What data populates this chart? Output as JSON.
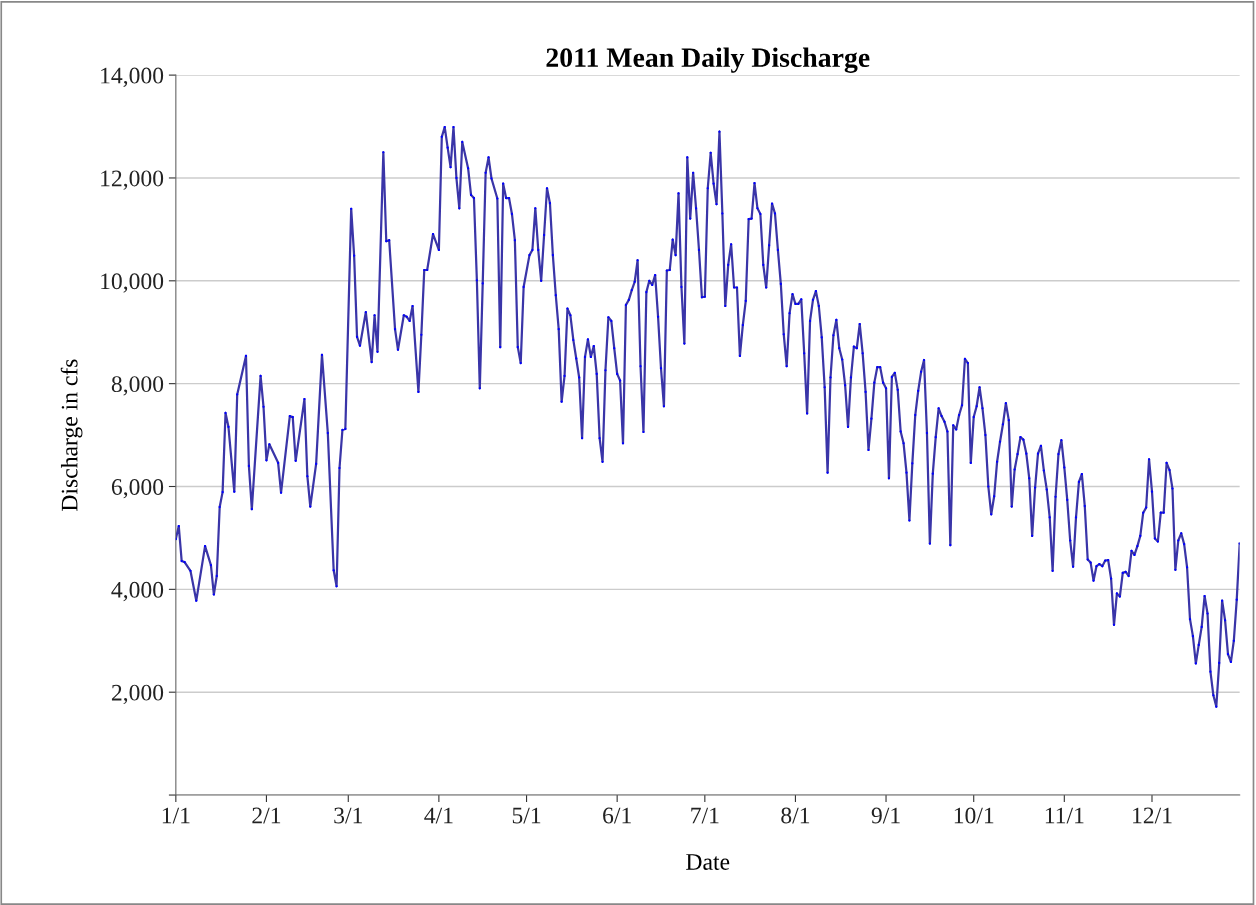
{
  "chart_data": {
    "type": "line",
    "title": "2011 Mean Daily Discharge",
    "xlabel": "Date",
    "ylabel": "Discharge in cfs",
    "xlim": [
      "2011-01-01",
      "2011-12-31"
    ],
    "xticks": [
      {
        "value": "2011-01-01",
        "label": "1/1"
      },
      {
        "value": "2011-02-01",
        "label": "2/1"
      },
      {
        "value": "2011-03-01",
        "label": "3/1"
      },
      {
        "value": "2011-04-01",
        "label": "4/1"
      },
      {
        "value": "2011-05-01",
        "label": "5/1"
      },
      {
        "value": "2011-06-01",
        "label": "6/1"
      },
      {
        "value": "2011-07-01",
        "label": "7/1"
      },
      {
        "value": "2011-08-01",
        "label": "8/1"
      },
      {
        "value": "2011-09-01",
        "label": "9/1"
      },
      {
        "value": "2011-10-01",
        "label": "10/1"
      },
      {
        "value": "2011-11-01",
        "label": "11/1"
      },
      {
        "value": "2011-12-01",
        "label": "12/1"
      }
    ],
    "ylim": [
      0,
      14000
    ],
    "yticks": [
      {
        "value": 0,
        "label": null
      },
      {
        "value": 2000,
        "label": "2,000"
      },
      {
        "value": 4000,
        "label": "4,000"
      },
      {
        "value": 6000,
        "label": "6,000"
      },
      {
        "value": 8000,
        "label": "8,000"
      },
      {
        "value": 10000,
        "label": "10,000"
      },
      {
        "value": 12000,
        "label": "12,000"
      },
      {
        "value": 14000,
        "label": "14,000"
      }
    ],
    "grid": "y",
    "marker": "circle",
    "line_style": "solid",
    "series": [
      {
        "color": "#3a35a8",
        "x": [
          "2011-01-01",
          "2011-01-02",
          "2011-01-03",
          "2011-01-04",
          "2011-01-06",
          "2011-01-08",
          "2011-01-11",
          "2011-01-13",
          "2011-01-14",
          "2011-01-15",
          "2011-01-16",
          "2011-01-17",
          "2011-01-18",
          "2011-01-19",
          "2011-01-21",
          "2011-01-22",
          "2011-01-25",
          "2011-01-26",
          "2011-01-27",
          "2011-01-30",
          "2011-01-31",
          "2011-02-01",
          "2011-02-02",
          "2011-02-05",
          "2011-02-06",
          "2011-02-09",
          "2011-02-10",
          "2011-02-11",
          "2011-02-14",
          "2011-02-15",
          "2011-02-16",
          "2011-02-18",
          "2011-02-20",
          "2011-02-22",
          "2011-02-24",
          "2011-02-25",
          "2011-02-26",
          "2011-02-27",
          "2011-02-28",
          "2011-03-02",
          "2011-03-03",
          "2011-03-04",
          "2011-03-05",
          "2011-03-07",
          "2011-03-09",
          "2011-03-10",
          "2011-03-11",
          "2011-03-13",
          "2011-03-14",
          "2011-03-15",
          "2011-03-17",
          "2011-03-18",
          "2011-03-20",
          "2011-03-21",
          "2011-03-22",
          "2011-03-23",
          "2011-03-25",
          "2011-03-26",
          "2011-03-27",
          "2011-03-28",
          "2011-03-30",
          "2011-04-01",
          "2011-04-02",
          "2011-04-03",
          "2011-04-04",
          "2011-04-05",
          "2011-04-06",
          "2011-04-07",
          "2011-04-08",
          "2011-04-09",
          "2011-04-11",
          "2011-04-12",
          "2011-04-13",
          "2011-04-14",
          "2011-04-15",
          "2011-04-16",
          "2011-04-17",
          "2011-04-18",
          "2011-04-19",
          "2011-04-21",
          "2011-04-22",
          "2011-04-23",
          "2011-04-24",
          "2011-04-25",
          "2011-04-26",
          "2011-04-27",
          "2011-04-28",
          "2011-04-29",
          "2011-04-30",
          "2011-05-02",
          "2011-05-03",
          "2011-05-04",
          "2011-05-05",
          "2011-05-06",
          "2011-05-07",
          "2011-05-08",
          "2011-05-09",
          "2011-05-10",
          "2011-05-11",
          "2011-05-12",
          "2011-05-13",
          "2011-05-14",
          "2011-05-15",
          "2011-05-16",
          "2011-05-17",
          "2011-05-18",
          "2011-05-19",
          "2011-05-20",
          "2011-05-21",
          "2011-05-22",
          "2011-05-23",
          "2011-05-24",
          "2011-05-25",
          "2011-05-26",
          "2011-05-27",
          "2011-05-28",
          "2011-05-29",
          "2011-05-30",
          "2011-05-31",
          "2011-06-01",
          "2011-06-02",
          "2011-06-03",
          "2011-06-04",
          "2011-06-05",
          "2011-06-06",
          "2011-06-07",
          "2011-06-08",
          "2011-06-09",
          "2011-06-10",
          "2011-06-11",
          "2011-06-12",
          "2011-06-13",
          "2011-06-14",
          "2011-06-15",
          "2011-06-16",
          "2011-06-17",
          "2011-06-18",
          "2011-06-19",
          "2011-06-20",
          "2011-06-21",
          "2011-06-22",
          "2011-06-23",
          "2011-06-24",
          "2011-06-25",
          "2011-06-26",
          "2011-06-27",
          "2011-06-28",
          "2011-06-29",
          "2011-06-30",
          "2011-07-01",
          "2011-07-02",
          "2011-07-03",
          "2011-07-04",
          "2011-07-05",
          "2011-07-06",
          "2011-07-07",
          "2011-07-08",
          "2011-07-09",
          "2011-07-10",
          "2011-07-11",
          "2011-07-12",
          "2011-07-13",
          "2011-07-14",
          "2011-07-15",
          "2011-07-16",
          "2011-07-17",
          "2011-07-18",
          "2011-07-19",
          "2011-07-20",
          "2011-07-21",
          "2011-07-22",
          "2011-07-23",
          "2011-07-24",
          "2011-07-25",
          "2011-07-26",
          "2011-07-27",
          "2011-07-28",
          "2011-07-29",
          "2011-07-30",
          "2011-07-31",
          "2011-08-01",
          "2011-08-02",
          "2011-08-03",
          "2011-08-04",
          "2011-08-05",
          "2011-08-06",
          "2011-08-07",
          "2011-08-08",
          "2011-08-09",
          "2011-08-10",
          "2011-08-11",
          "2011-08-12",
          "2011-08-13",
          "2011-08-14",
          "2011-08-15",
          "2011-08-16",
          "2011-08-17",
          "2011-08-18",
          "2011-08-19",
          "2011-08-20",
          "2011-08-21",
          "2011-08-22",
          "2011-08-23",
          "2011-08-24",
          "2011-08-25",
          "2011-08-26",
          "2011-08-27",
          "2011-08-28",
          "2011-08-29",
          "2011-08-30",
          "2011-08-31",
          "2011-09-01",
          "2011-09-02",
          "2011-09-03",
          "2011-09-04",
          "2011-09-05",
          "2011-09-06",
          "2011-09-07",
          "2011-09-08",
          "2011-09-09",
          "2011-09-10",
          "2011-09-11",
          "2011-09-12",
          "2011-09-13",
          "2011-09-14",
          "2011-09-15",
          "2011-09-16",
          "2011-09-17",
          "2011-09-18",
          "2011-09-19",
          "2011-09-20",
          "2011-09-21",
          "2011-09-22",
          "2011-09-23",
          "2011-09-24",
          "2011-09-25",
          "2011-09-26",
          "2011-09-27",
          "2011-09-28",
          "2011-09-29",
          "2011-09-30",
          "2011-10-01",
          "2011-10-02",
          "2011-10-03",
          "2011-10-04",
          "2011-10-05",
          "2011-10-06",
          "2011-10-07",
          "2011-10-08",
          "2011-10-09",
          "2011-10-10",
          "2011-10-11",
          "2011-10-12",
          "2011-10-13",
          "2011-10-14",
          "2011-10-15",
          "2011-10-16",
          "2011-10-17",
          "2011-10-18",
          "2011-10-19",
          "2011-10-20",
          "2011-10-21",
          "2011-10-22",
          "2011-10-23",
          "2011-10-24",
          "2011-10-25",
          "2011-10-26",
          "2011-10-27",
          "2011-10-28",
          "2011-10-29",
          "2011-10-30",
          "2011-10-31",
          "2011-11-01",
          "2011-11-02",
          "2011-11-03",
          "2011-11-04",
          "2011-11-05",
          "2011-11-06",
          "2011-11-07",
          "2011-11-08",
          "2011-11-09",
          "2011-11-10",
          "2011-11-11",
          "2011-11-12",
          "2011-11-13",
          "2011-11-14",
          "2011-11-15",
          "2011-11-16",
          "2011-11-17",
          "2011-11-18",
          "2011-11-19",
          "2011-11-20",
          "2011-11-21",
          "2011-11-22",
          "2011-11-23",
          "2011-11-24",
          "2011-11-25",
          "2011-11-26",
          "2011-11-27",
          "2011-11-28",
          "2011-11-29",
          "2011-11-30",
          "2011-12-01",
          "2011-12-02",
          "2011-12-03",
          "2011-12-04",
          "2011-12-05",
          "2011-12-06",
          "2011-12-07",
          "2011-12-08",
          "2011-12-09",
          "2011-12-10",
          "2011-12-11",
          "2011-12-12",
          "2011-12-13",
          "2011-12-14",
          "2011-12-15",
          "2011-12-16",
          "2011-12-17",
          "2011-12-18",
          "2011-12-19",
          "2011-12-20",
          "2011-12-21",
          "2011-12-22",
          "2011-12-23",
          "2011-12-24",
          "2011-12-25",
          "2011-12-26",
          "2011-12-27",
          "2011-12-28",
          "2011-12-29",
          "2011-12-30",
          "2011-12-31"
        ],
        "values": [
          4980,
          5230,
          4550,
          4530,
          4360,
          3780,
          4840,
          4470,
          3900,
          4260,
          5600,
          5890,
          7430,
          7160,
          5900,
          7790,
          8540,
          6400,
          5560,
          8150,
          7550,
          6510,
          6820,
          6460,
          5880,
          7370,
          7350,
          6500,
          7700,
          6200,
          5610,
          6440,
          8560,
          7040,
          4370,
          4060,
          6360,
          7100,
          7120,
          11400,
          10490,
          8910,
          8740,
          9390,
          8420,
          9330,
          8620,
          12500,
          10770,
          10790,
          9060,
          8660,
          9330,
          9300,
          9220,
          9510,
          7840,
          8950,
          10210,
          10210,
          10910,
          10600,
          12800,
          12990,
          12590,
          12210,
          12990,
          12000,
          11410,
          12700,
          12190,
          11670,
          11610,
          10010,
          7910,
          9950,
          12100,
          12400,
          11990,
          11600,
          8710,
          11890,
          11610,
          11610,
          11300,
          10790,
          8710,
          8400,
          9880,
          10500,
          10600,
          11410,
          10600,
          10000,
          10890,
          11800,
          11510,
          10500,
          9720,
          9060,
          7650,
          8150,
          9460,
          9330,
          8850,
          8490,
          8120,
          6940,
          8520,
          8860,
          8520,
          8730,
          8190,
          6940,
          6480,
          8260,
          9290,
          9220,
          8690,
          8190,
          8060,
          6840,
          9530,
          9630,
          9820,
          9980,
          10400,
          8340,
          7060,
          9780,
          10000,
          9920,
          10110,
          9300,
          8300,
          7560,
          10200,
          10210,
          10800,
          10500,
          11700,
          9880,
          8780,
          12400,
          11210,
          12100,
          11410,
          10600,
          9680,
          9690,
          11800,
          12490,
          11890,
          11490,
          12900,
          11310,
          9510,
          10310,
          10710,
          9870,
          9870,
          8540,
          9140,
          9610,
          11200,
          11210,
          11900,
          11410,
          11300,
          10310,
          9870,
          10690,
          11500,
          11310,
          10600,
          9940,
          8960,
          8340,
          9370,
          9740,
          9550,
          9550,
          9640,
          8590,
          7420,
          9220,
          9630,
          9800,
          9510,
          8900,
          7930,
          6270,
          8120,
          8940,
          9240,
          8690,
          8470,
          7970,
          7160,
          8120,
          8720,
          8690,
          9160,
          8590,
          7840,
          6710,
          7320,
          8020,
          8320,
          8320,
          8020,
          7910,
          6160,
          8130,
          8210,
          7880,
          7070,
          6840,
          6270,
          5340,
          6450,
          7390,
          7860,
          8230,
          8460,
          7040,
          4890,
          6250,
          6960,
          7520,
          7370,
          7260,
          7070,
          4860,
          7190,
          7110,
          7390,
          7580,
          8480,
          8400,
          6460,
          7350,
          7560,
          7930,
          7520,
          7000,
          6000,
          5460,
          5810,
          6480,
          6870,
          7210,
          7620,
          7290,
          5610,
          6330,
          6630,
          6960,
          6910,
          6640,
          6160,
          5040,
          5980,
          6640,
          6790,
          6310,
          5940,
          5400,
          4360,
          5800,
          6630,
          6900,
          6370,
          5740,
          4950,
          4440,
          5400,
          6090,
          6240,
          5620,
          4580,
          4520,
          4170,
          4450,
          4490,
          4450,
          4560,
          4570,
          4210,
          3310,
          3920,
          3860,
          4320,
          4340,
          4260,
          4750,
          4670,
          4840,
          5040,
          5490,
          5590,
          6530,
          5900,
          4990,
          4930,
          5490,
          5490,
          6460,
          6320,
          5960,
          4380,
          4950,
          5090,
          4880,
          4430,
          3420,
          3090,
          2560,
          2920,
          3270,
          3870,
          3530,
          2400,
          1940,
          1720,
          2570,
          3780,
          3400,
          2740,
          2590,
          3000,
          3800,
          4890
        ]
      }
    ]
  }
}
